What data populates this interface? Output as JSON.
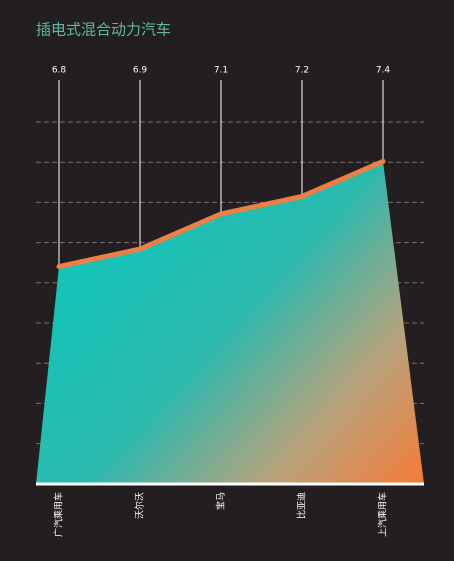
{
  "chart_data": {
    "type": "area",
    "title": "插电式混合动力汽车",
    "categories": [
      "广汽乘用车",
      "沃尔沃",
      "宝马",
      "比亚迪",
      "上汽乘用车"
    ],
    "values": [
      6.8,
      6.9,
      7.1,
      7.2,
      7.4
    ],
    "color": "#ec7f45",
    "ylim": [
      5.56,
      7.75
    ]
  }
}
